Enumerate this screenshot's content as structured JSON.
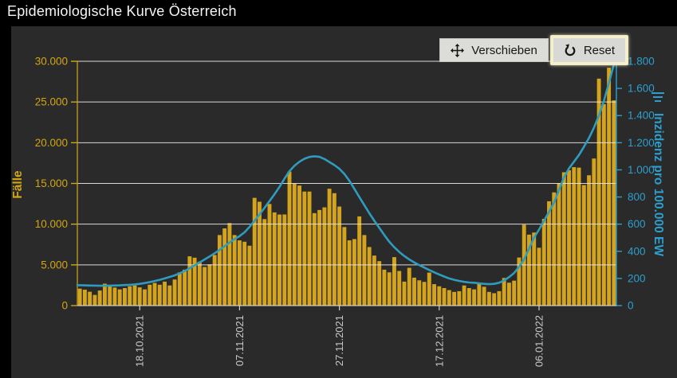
{
  "title": "Epidemiologische Kurve Österreich",
  "toolbar": {
    "pan_label": "Verschieben",
    "reset_label": "Reset",
    "pan_icon": "move-icon",
    "reset_icon": "reset-icon",
    "context_icon": "chart-menu-icon"
  },
  "chart_data": {
    "type": "bar",
    "title": "Epidemiologische Kurve Österreich",
    "grid": true,
    "x_axis": {
      "tick_labels": [
        "18.10.2021",
        "07.11.2021",
        "27.11.2021",
        "17.12.2021",
        "06.01.2022"
      ],
      "color": "#c9c9c9"
    },
    "left_axis": {
      "label": "Fälle",
      "min": 0,
      "max": 30000,
      "step": 5000,
      "tick_labels": [
        "0",
        "5.000",
        "10.000",
        "15.000",
        "20.000",
        "25.000",
        "30.000"
      ],
      "color": "#d2a513"
    },
    "right_axis": {
      "label": "Inzidenz pro 100.000 EW",
      "min": 0,
      "max": 1800,
      "step": 200,
      "tick_labels": [
        "0",
        "200",
        "400",
        "600",
        "800",
        "1.000",
        "1.200",
        "1.400",
        "1.600",
        "1.800"
      ],
      "color": "#2d9fce"
    },
    "x": [
      "06.10.2021",
      "07.10.2021",
      "08.10.2021",
      "09.10.2021",
      "10.10.2021",
      "11.10.2021",
      "12.10.2021",
      "13.10.2021",
      "14.10.2021",
      "15.10.2021",
      "16.10.2021",
      "17.10.2021",
      "18.10.2021",
      "19.10.2021",
      "20.10.2021",
      "21.10.2021",
      "22.10.2021",
      "23.10.2021",
      "24.10.2021",
      "25.10.2021",
      "26.10.2021",
      "27.10.2021",
      "28.10.2021",
      "29.10.2021",
      "30.10.2021",
      "31.10.2021",
      "01.11.2021",
      "02.11.2021",
      "03.11.2021",
      "04.11.2021",
      "05.11.2021",
      "06.11.2021",
      "07.11.2021",
      "08.11.2021",
      "09.11.2021",
      "10.11.2021",
      "11.11.2021",
      "12.11.2021",
      "13.11.2021",
      "14.11.2021",
      "15.11.2021",
      "16.11.2021",
      "17.11.2021",
      "18.11.2021",
      "19.11.2021",
      "20.11.2021",
      "21.11.2021",
      "22.11.2021",
      "23.11.2021",
      "24.11.2021",
      "25.11.2021",
      "26.11.2021",
      "27.11.2021",
      "28.11.2021",
      "29.11.2021",
      "30.11.2021",
      "01.12.2021",
      "02.12.2021",
      "03.12.2021",
      "04.12.2021",
      "05.12.2021",
      "06.12.2021",
      "07.12.2021",
      "08.12.2021",
      "09.12.2021",
      "10.12.2021",
      "11.12.2021",
      "12.12.2021",
      "13.12.2021",
      "14.12.2021",
      "15.12.2021",
      "16.12.2021",
      "17.12.2021",
      "18.12.2021",
      "19.12.2021",
      "20.12.2021",
      "21.12.2021",
      "22.12.2021",
      "23.12.2021",
      "24.12.2021",
      "25.12.2021",
      "26.12.2021",
      "27.12.2021",
      "28.12.2021",
      "29.12.2021",
      "30.12.2021",
      "31.12.2021",
      "01.01.2022",
      "02.01.2022",
      "03.01.2022",
      "04.01.2022",
      "05.01.2022",
      "06.01.2022",
      "07.01.2022",
      "08.01.2022",
      "09.01.2022",
      "10.01.2022",
      "11.01.2022",
      "12.01.2022",
      "13.01.2022",
      "14.01.2022",
      "15.01.2022",
      "16.01.2022",
      "17.01.2022",
      "18.01.2022",
      "19.01.2022",
      "20.01.2022",
      "21.01.2022"
    ],
    "series": [
      {
        "name": "Fälle",
        "type": "bar",
        "axis": "left",
        "color": "#d5a41d",
        "values": [
          2080,
          1950,
          1700,
          1310,
          1850,
          2690,
          2470,
          2210,
          1990,
          2150,
          2370,
          2470,
          2240,
          1990,
          2560,
          2780,
          2560,
          2940,
          2470,
          3200,
          4080,
          4410,
          6050,
          5880,
          5390,
          4740,
          5070,
          6210,
          8660,
          9480,
          10130,
          8660,
          8010,
          7840,
          7350,
          13230,
          12750,
          10620,
          12480,
          11440,
          11180,
          11190,
          16450,
          15000,
          14740,
          14000,
          14000,
          11350,
          11740,
          12060,
          14350,
          13800,
          12160,
          9640,
          8010,
          8170,
          10950,
          8660,
          7190,
          6140,
          5460,
          4410,
          4080,
          5950,
          4250,
          2940,
          4640,
          3430,
          3100,
          2910,
          4050,
          2630,
          2370,
          2150,
          1900,
          1680,
          1770,
          2470,
          2150,
          1990,
          2780,
          2310,
          1680,
          1520,
          1770,
          3390,
          2810,
          3060,
          5900,
          9940,
          8710,
          8970,
          7100,
          10650,
          12810,
          13900,
          15030,
          16370,
          16620,
          17000,
          16940,
          14800,
          16000,
          18060,
          27870,
          24740,
          29210,
          25200
        ]
      },
      {
        "name": "Inzidenz pro 100.000 EW",
        "type": "line",
        "axis": "right",
        "color": "#2f9cbe",
        "values": [
          150,
          149,
          148,
          147,
          146,
          146,
          147,
          148,
          149,
          151,
          153,
          156,
          160,
          166,
          173,
          181,
          190,
          200,
          211,
          223,
          238,
          255,
          275,
          296,
          318,
          340,
          362,
          385,
          410,
          437,
          465,
          490,
          512,
          540,
          580,
          625,
          672,
          720,
          770,
          820,
          875,
          935,
          990,
          1030,
          1060,
          1082,
          1095,
          1100,
          1096,
          1080,
          1058,
          1035,
          1008,
          970,
          920,
          860,
          800,
          740,
          680,
          625,
          572,
          520,
          470,
          430,
          395,
          365,
          340,
          318,
          298,
          280,
          262,
          245,
          229,
          214,
          200,
          190,
          182,
          175,
          170,
          168,
          164,
          160,
          158,
          160,
          168,
          185,
          210,
          240,
          285,
          340,
          420,
          500,
          560,
          625,
          690,
          760,
          850,
          945,
          1010,
          1060,
          1110,
          1170,
          1235,
          1310,
          1400,
          1510,
          1640,
          1780
        ]
      }
    ]
  }
}
